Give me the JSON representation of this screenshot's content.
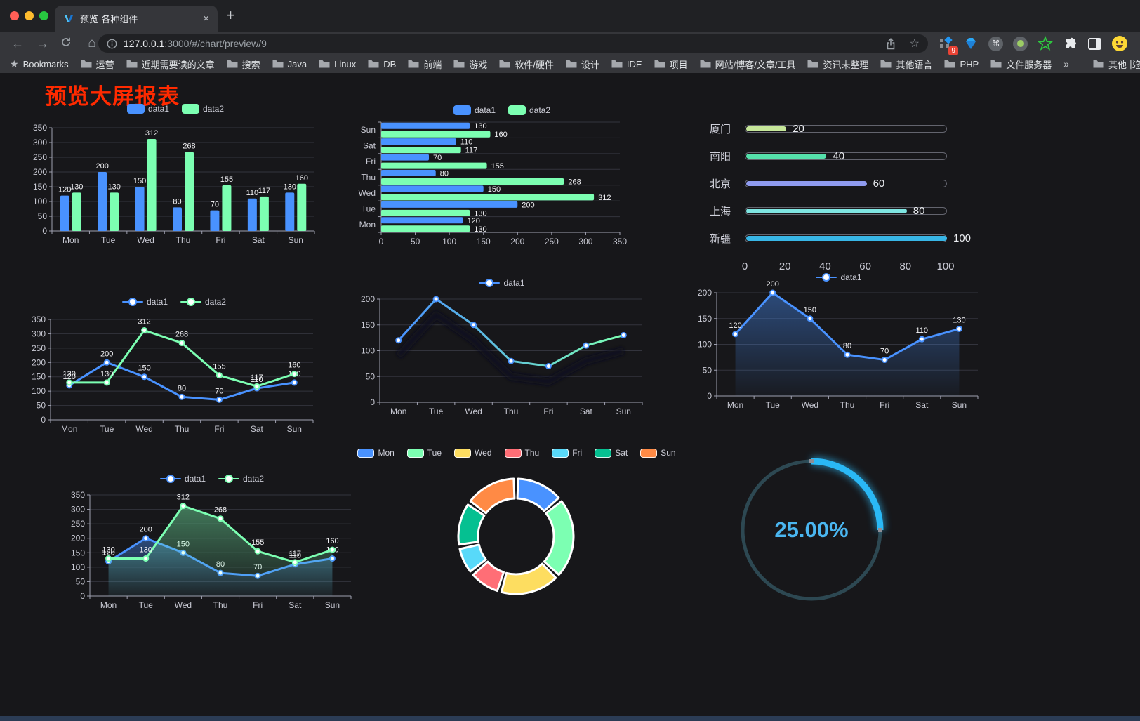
{
  "browser": {
    "traffic_lights": [
      "#ff5f57",
      "#febc2e",
      "#28c840"
    ],
    "tab_title": "预览-各种组件",
    "close_label": "×",
    "new_tab_label": "+",
    "url_host": "127.0.0.1",
    "url_path": ":3000/#/chart/preview/9",
    "extension_badge": "9",
    "bookmarks_label": "Bookmarks",
    "bookmarks": [
      "运营",
      "近期需要读的文章",
      "搜索",
      "Java",
      "Linux",
      "DB",
      "前端",
      "游戏",
      "软件/硬件",
      "设计",
      "IDE",
      "项目",
      "网站/博客/文章/工具",
      "资讯未整理",
      "其他语言",
      "PHP",
      "文件服务器"
    ],
    "overflow_chevron": "»",
    "other_bookmarks": "其他书签",
    "menu_dots": "⋮"
  },
  "page": {
    "title": "预览大屏报表",
    "title_color": "#ff2a00"
  },
  "chart_data": [
    {
      "id": "bar-vertical",
      "type": "bar",
      "legend_position": "top",
      "grid": true,
      "categories": [
        "Mon",
        "Tue",
        "Wed",
        "Thu",
        "Fri",
        "Sat",
        "Sun"
      ],
      "series": [
        {
          "name": "data1",
          "color": "#4992ff",
          "values": [
            120,
            200,
            150,
            80,
            70,
            110,
            130
          ]
        },
        {
          "name": "data2",
          "color": "#7cffb2",
          "values": [
            130,
            130,
            312,
            268,
            155,
            117,
            160
          ]
        }
      ],
      "ylim": [
        0,
        350
      ],
      "ytick_step": 50
    },
    {
      "id": "bar-horizontal",
      "type": "bar",
      "orientation": "horizontal",
      "legend_position": "top",
      "categories": [
        "Mon",
        "Tue",
        "Wed",
        "Thu",
        "Fri",
        "Sat",
        "Sun"
      ],
      "series": [
        {
          "name": "data1",
          "color": "#4992ff",
          "values": [
            120,
            200,
            150,
            80,
            70,
            110,
            130
          ]
        },
        {
          "name": "data2",
          "color": "#7cffb2",
          "values": [
            130,
            130,
            312,
            268,
            155,
            117,
            160
          ]
        }
      ],
      "xlim": [
        0,
        350
      ],
      "xtick_step": 50
    },
    {
      "id": "city-progress",
      "type": "bar",
      "subtype": "progress-list",
      "rows": [
        {
          "label": "厦门",
          "value": 20,
          "color": "#c6e79a"
        },
        {
          "label": "南阳",
          "value": 40,
          "color": "#55e0ab"
        },
        {
          "label": "北京",
          "value": 60,
          "color": "#8f9bef"
        },
        {
          "label": "上海",
          "value": 80,
          "color": "#7fe6e2"
        },
        {
          "label": "新疆",
          "value": 100,
          "color": "#38b6e6"
        }
      ],
      "xlim": [
        0,
        100
      ],
      "xticks": [
        0,
        20,
        40,
        60,
        80,
        100
      ]
    },
    {
      "id": "line-two",
      "type": "line",
      "legend_position": "top",
      "show_labels": true,
      "categories": [
        "Mon",
        "Tue",
        "Wed",
        "Thu",
        "Fri",
        "Sat",
        "Sun"
      ],
      "series": [
        {
          "name": "data1",
          "color": "#4992ff",
          "values": [
            120,
            200,
            150,
            80,
            70,
            110,
            130
          ]
        },
        {
          "name": "data2",
          "color": "#7cffb2",
          "values": [
            130,
            130,
            312,
            268,
            155,
            117,
            160
          ]
        }
      ],
      "ylim": [
        0,
        350
      ],
      "ytick_step": 50
    },
    {
      "id": "line-gradient",
      "type": "line",
      "legend_position": "top",
      "show_labels": false,
      "shadow": true,
      "categories": [
        "Mon",
        "Tue",
        "Wed",
        "Thu",
        "Fri",
        "Sat",
        "Sun"
      ],
      "series": [
        {
          "name": "data1",
          "color": "#4992ff",
          "gradient": [
            "#4992ff",
            "#7cffb2"
          ],
          "values": [
            120,
            200,
            150,
            80,
            70,
            110,
            130
          ]
        }
      ],
      "ylim": [
        0,
        200
      ],
      "ytick_step": 50
    },
    {
      "id": "area-single",
      "type": "area",
      "legend_position": "top",
      "show_labels": true,
      "categories": [
        "Mon",
        "Tue",
        "Wed",
        "Thu",
        "Fri",
        "Sat",
        "Sun"
      ],
      "series": [
        {
          "name": "data1",
          "color": "#4992ff",
          "area": true,
          "values": [
            120,
            200,
            150,
            80,
            70,
            110,
            130
          ]
        }
      ],
      "ylim": [
        0,
        200
      ],
      "ytick_step": 50
    },
    {
      "id": "area-two",
      "type": "area",
      "legend_position": "top",
      "show_labels": true,
      "categories": [
        "Mon",
        "Tue",
        "Wed",
        "Thu",
        "Fri",
        "Sat",
        "Sun"
      ],
      "series": [
        {
          "name": "data1",
          "color": "#4992ff",
          "area": true,
          "values": [
            120,
            200,
            150,
            80,
            70,
            110,
            130
          ]
        },
        {
          "name": "data2",
          "color": "#7cffb2",
          "area": true,
          "values": [
            130,
            130,
            312,
            268,
            155,
            117,
            160
          ]
        }
      ],
      "ylim": [
        0,
        350
      ],
      "ytick_step": 50
    },
    {
      "id": "donut",
      "type": "pie",
      "legend_position": "top",
      "labels": [
        "Mon",
        "Tue",
        "Wed",
        "Thu",
        "Fri",
        "Sat",
        "Sun"
      ],
      "values": [
        120,
        200,
        150,
        80,
        70,
        110,
        130
      ],
      "colors": [
        "#4992ff",
        "#7cffb2",
        "#fddd60",
        "#ff6e76",
        "#58d9f9",
        "#05c091",
        "#ff8a45"
      ]
    },
    {
      "id": "gauge",
      "type": "gauge",
      "percent": 25,
      "value_label": "25.00%",
      "progress_color": "#2ab8f5",
      "track_color": "#2d4852",
      "text_color": "#4ab6f0"
    }
  ]
}
